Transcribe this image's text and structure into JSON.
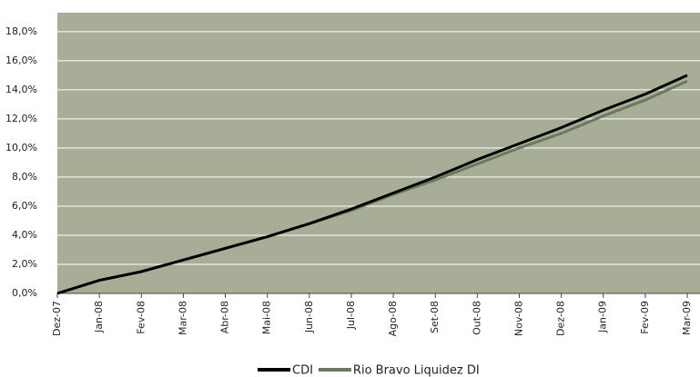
{
  "chart_data": {
    "type": "line",
    "categories": [
      "Dez-07",
      "Jan-08",
      "Fev-08",
      "Mar-08",
      "Abr-08",
      "Mai-08",
      "Jun-08",
      "Jul-08",
      "Ago-08",
      "Set-08",
      "Out-08",
      "Nov-08",
      "Dez-08",
      "Jan-09",
      "Fev-09",
      "Mar-09"
    ],
    "series": [
      {
        "name": "CDI",
        "color": "#000000",
        "values": [
          0.0,
          0.9,
          1.5,
          2.3,
          3.1,
          3.9,
          4.8,
          5.8,
          6.9,
          8.0,
          9.2,
          10.3,
          11.4,
          12.6,
          13.7,
          15.0
        ]
      },
      {
        "name": "Rio Bravo Liquidez DI",
        "color": "#6b7a5c",
        "values": [
          0.0,
          0.9,
          1.5,
          2.3,
          3.1,
          3.9,
          4.8,
          5.7,
          6.8,
          7.8,
          8.9,
          10.0,
          11.0,
          12.2,
          13.3,
          14.6
        ]
      }
    ],
    "ylim": [
      0,
      19.3
    ],
    "yticks": [
      {
        "value": 0,
        "label": "0,0%"
      },
      {
        "value": 2,
        "label": "2,0%"
      },
      {
        "value": 4,
        "label": "4,0%"
      },
      {
        "value": 6,
        "label": "6,0%"
      },
      {
        "value": 8,
        "label": "8,0%"
      },
      {
        "value": 10,
        "label": "10,0%"
      },
      {
        "value": 12,
        "label": "12,0%"
      },
      {
        "value": 14,
        "label": "14,0%"
      },
      {
        "value": 16,
        "label": "16,0%"
      },
      {
        "value": 18,
        "label": "18,0%"
      }
    ],
    "grid": true,
    "plot_background": "#a8ad97",
    "legend": "bottom"
  }
}
